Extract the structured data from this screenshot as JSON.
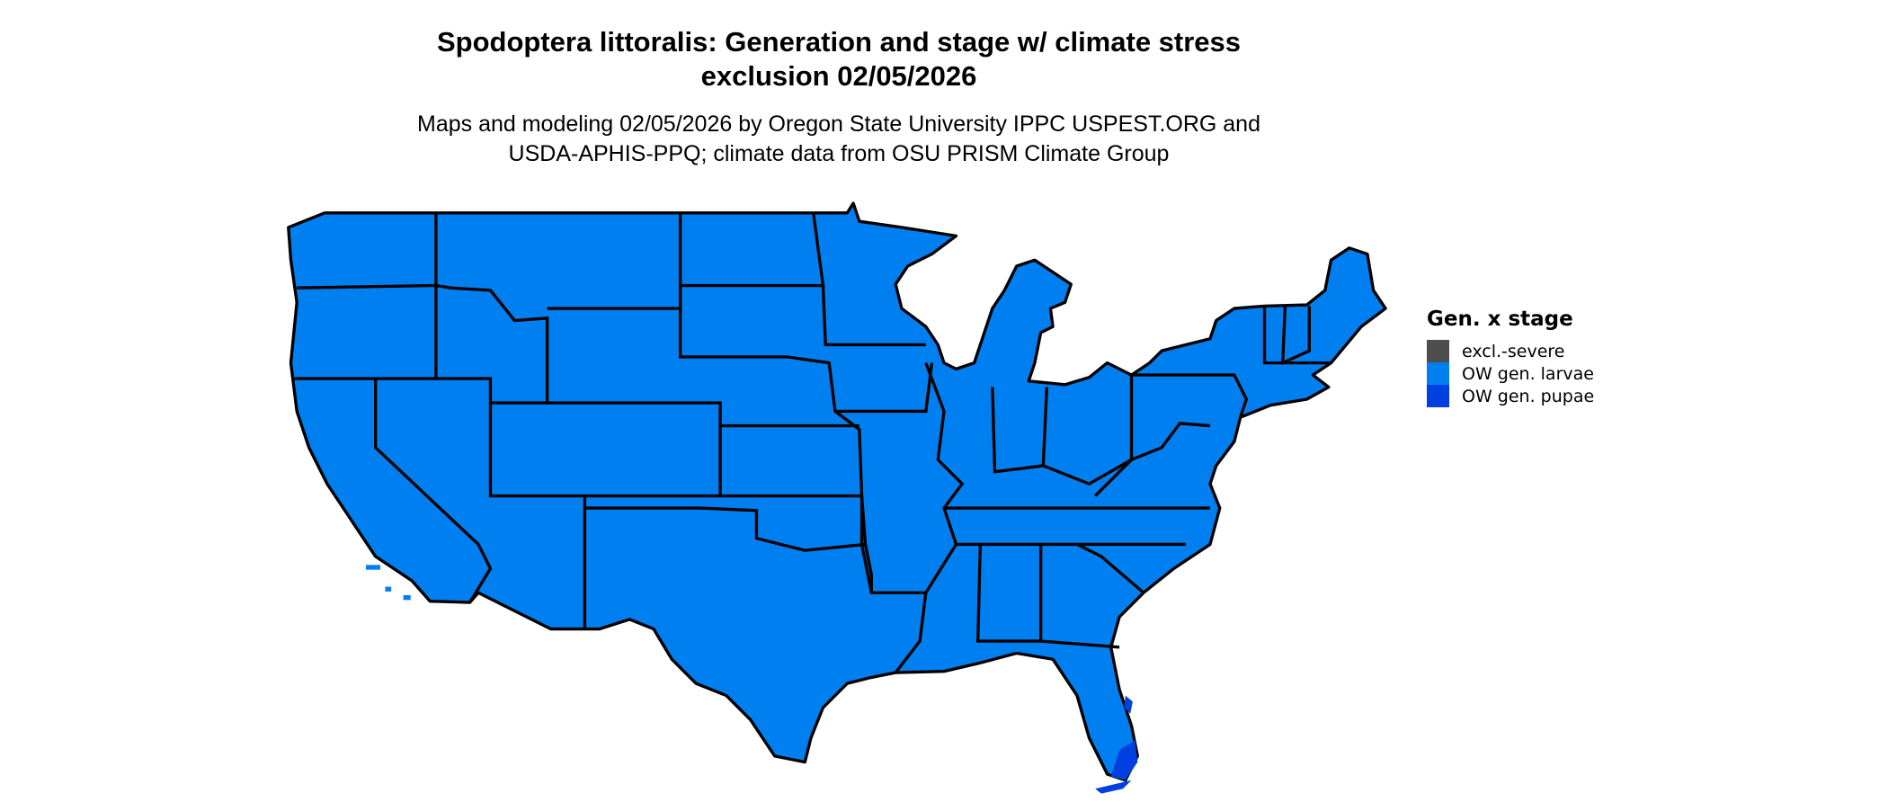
{
  "title": {
    "line1": "Spodoptera littoralis: Generation and stage w/ climate stress",
    "line2": "exclusion 02/05/2026"
  },
  "subtitle": {
    "line1": "Maps and modeling 02/05/2026 by Oregon State University IPPC USPEST.ORG and",
    "line2": "USDA-APHIS-PPQ; climate data from OSU PRISM Climate Group"
  },
  "legend": {
    "title": "Gen. x stage",
    "items": [
      {
        "label": "excl.-severe",
        "color": "#4d4d4d"
      },
      {
        "label": "OW gen. larvae",
        "color": "#0080f0"
      },
      {
        "label": "OW gen. pupae",
        "color": "#0040e0"
      }
    ]
  },
  "map": {
    "region": "contiguous United States",
    "dominant_class": "OW gen. larvae",
    "border_color": "#000000"
  }
}
